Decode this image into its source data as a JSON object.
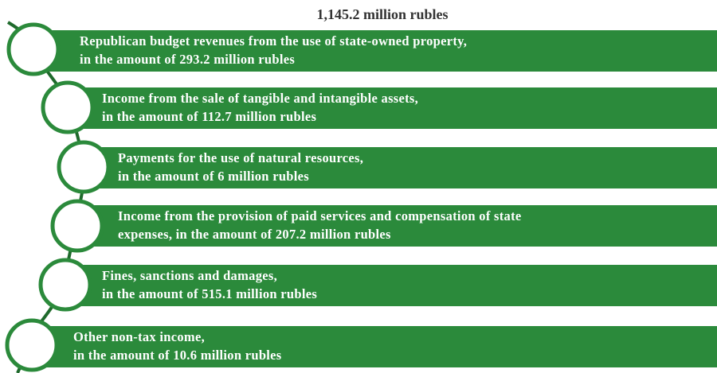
{
  "title": "1,145.2 million rubles",
  "items": [
    {
      "lines": [
        "Republican budget revenues from the use of state-owned property,",
        "in the amount of 293.2 million rubles"
      ]
    },
    {
      "lines": [
        "Income from the sale of tangible and intangible assets,",
        "in the amount of 112.7 million rubles"
      ]
    },
    {
      "lines": [
        "Payments for the use of natural resources,",
        "in the amount of 6 million rubles"
      ]
    },
    {
      "lines": [
        "Income from the provision of paid services and compensation of state",
        "expenses, in the amount of 207.2 million rubles"
      ]
    },
    {
      "lines": [
        "Fines, sanctions and damages,",
        "in the amount of 515.1 million rubles"
      ]
    },
    {
      "lines": [
        "Other non-tax income,",
        "in the amount of 10.6 million rubles"
      ]
    }
  ]
}
